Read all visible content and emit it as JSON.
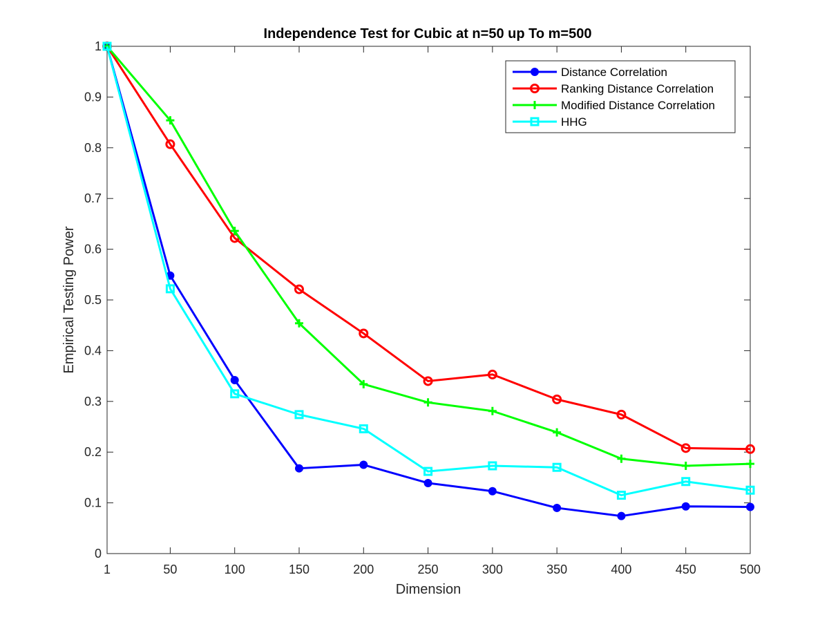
{
  "chart_data": {
    "type": "line",
    "title": "Independence Test for Cubic at n=50 up To m=500",
    "xlabel": "Dimension",
    "ylabel": "Empirical Testing Power",
    "x": [
      1,
      50,
      100,
      150,
      200,
      250,
      300,
      350,
      400,
      450,
      500
    ],
    "x_ticks": [
      "1",
      "50",
      "100",
      "150",
      "200",
      "250",
      "300",
      "350",
      "400",
      "450",
      "500"
    ],
    "y_ticks": [
      "0",
      "0.1",
      "0.2",
      "0.3",
      "0.4",
      "0.5",
      "0.6",
      "0.7",
      "0.8",
      "0.9",
      "1"
    ],
    "xlim": [
      1,
      500
    ],
    "ylim": [
      0,
      1
    ],
    "grid": false,
    "legend_position": "top-right",
    "series": [
      {
        "name": "Distance Correlation",
        "color": "#0000ff",
        "marker": "filled-circle",
        "values": [
          1.0,
          0.548,
          0.342,
          0.168,
          0.175,
          0.139,
          0.123,
          0.09,
          0.074,
          0.093,
          0.092
        ]
      },
      {
        "name": "Ranking Distance Correlation",
        "color": "#ff0000",
        "marker": "open-circle",
        "values": [
          1.0,
          0.807,
          0.622,
          0.521,
          0.434,
          0.34,
          0.353,
          0.304,
          0.274,
          0.208,
          0.206
        ]
      },
      {
        "name": "Modified Distance Correlation",
        "color": "#00ff00",
        "marker": "plus",
        "values": [
          1.0,
          0.854,
          0.636,
          0.454,
          0.334,
          0.298,
          0.281,
          0.239,
          0.187,
          0.173,
          0.177
        ]
      },
      {
        "name": "HHG",
        "color": "#00ffff",
        "marker": "open-square",
        "values": [
          1.0,
          0.522,
          0.315,
          0.274,
          0.246,
          0.162,
          0.173,
          0.17,
          0.115,
          0.142,
          0.125
        ]
      }
    ]
  }
}
